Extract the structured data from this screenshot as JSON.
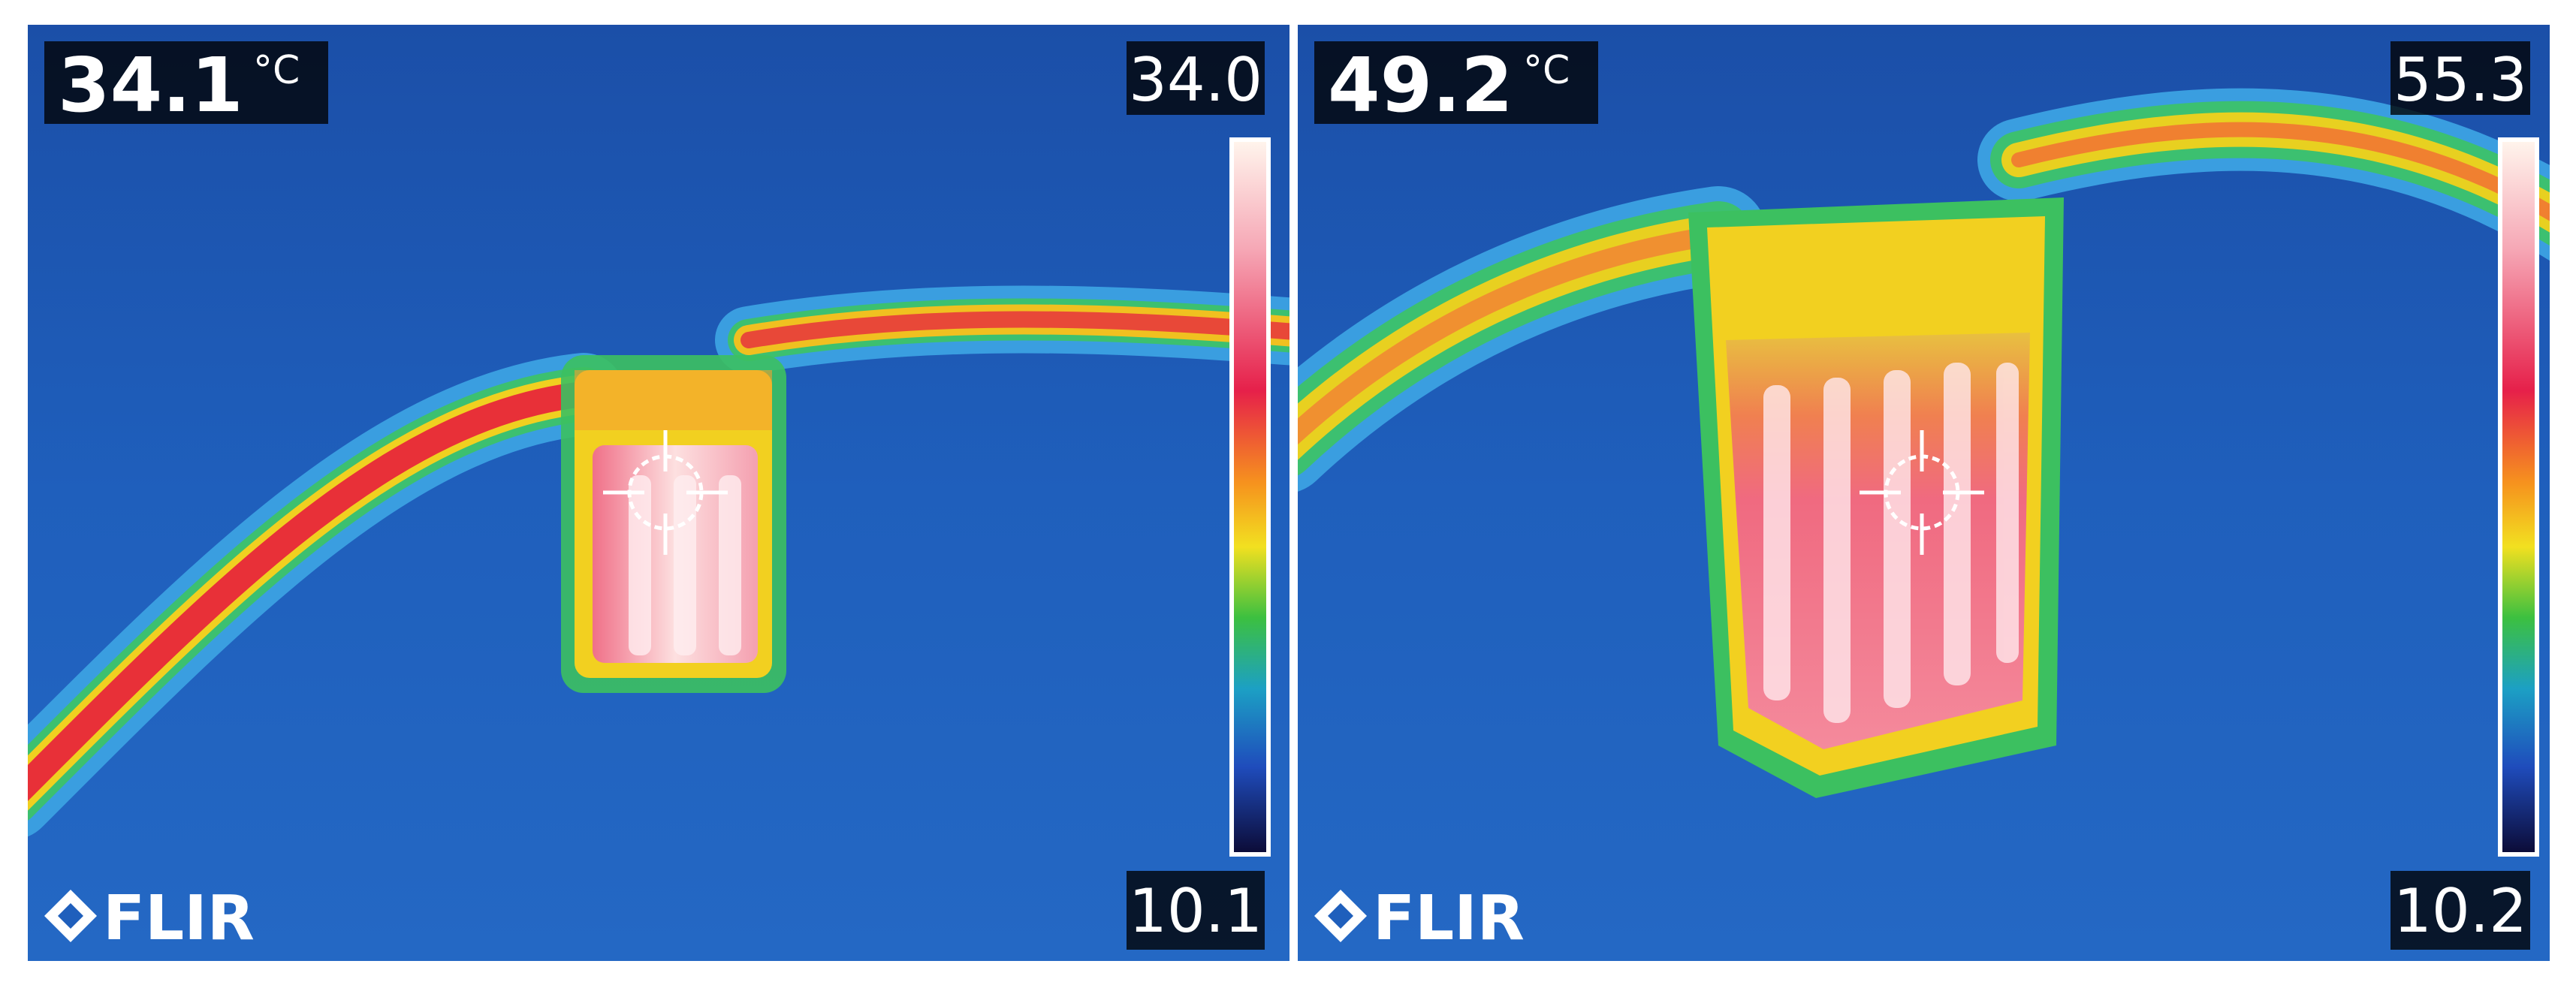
{
  "panels": [
    {
      "spot_temperature": "34.1",
      "unit": "°C",
      "scale_max": "34.0",
      "scale_min": "10.1",
      "logo": "FLIR"
    },
    {
      "spot_temperature": "49.2",
      "unit": "°C",
      "scale_max": "55.3",
      "scale_min": "10.2",
      "logo": "FLIR"
    }
  ]
}
